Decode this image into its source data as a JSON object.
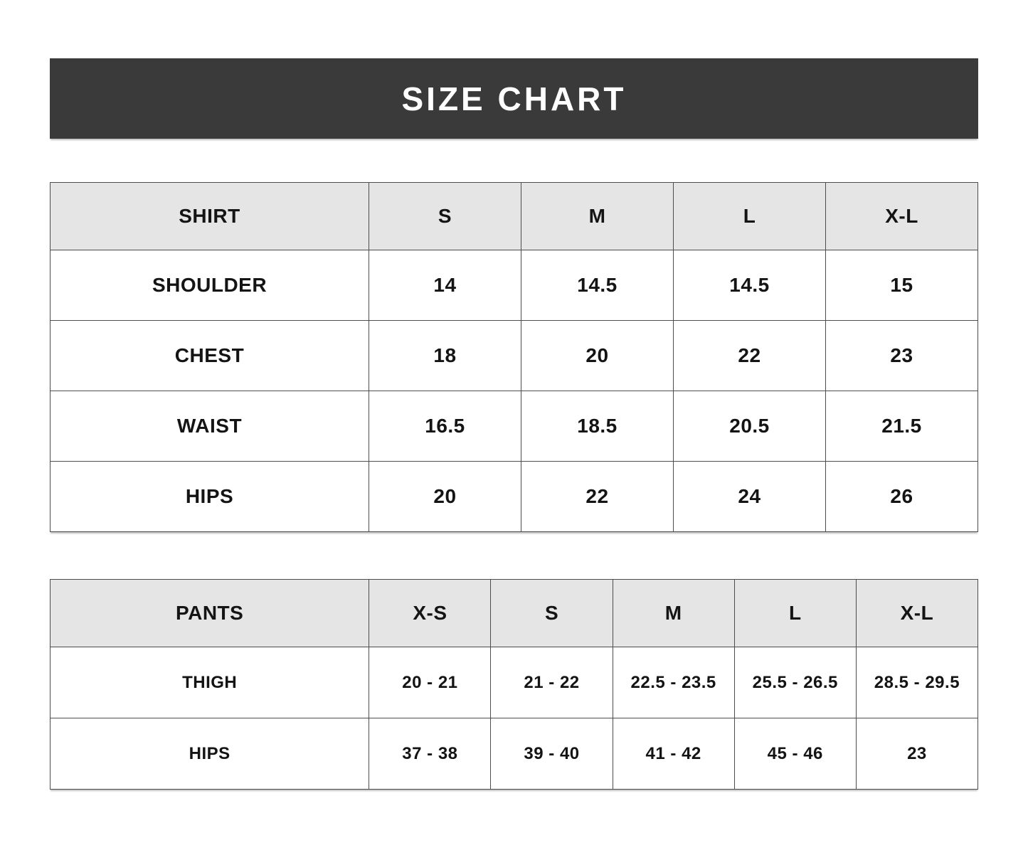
{
  "banner": {
    "title": "SIZE CHART"
  },
  "colors": {
    "banner_background": "#3a3a3a",
    "banner_text": "#ffffff",
    "header_row_background": "#e5e5e5",
    "table_border": "#4d4d4d",
    "text": "#141414",
    "page_background": "#ffffff"
  },
  "shirt_table": {
    "headers": [
      "SHIRT",
      "S",
      "M",
      "L",
      "X-L"
    ],
    "rows": [
      {
        "label": "SHOULDER",
        "values": [
          "14",
          "14.5",
          "14.5",
          "15"
        ]
      },
      {
        "label": "CHEST",
        "values": [
          "18",
          "20",
          "22",
          "23"
        ]
      },
      {
        "label": "WAIST",
        "values": [
          "16.5",
          "18.5",
          "20.5",
          "21.5"
        ]
      },
      {
        "label": "HIPS",
        "values": [
          "20",
          "22",
          "24",
          "26"
        ]
      }
    ]
  },
  "pants_table": {
    "headers": [
      "PANTS",
      "X-S",
      "S",
      "M",
      "L",
      "X-L"
    ],
    "rows": [
      {
        "label": "THIGH",
        "values": [
          "20 - 21",
          "21 - 22",
          "22.5 - 23.5",
          "25.5 - 26.5",
          "28.5 - 29.5"
        ]
      },
      {
        "label": "HIPS",
        "values": [
          "37 - 38",
          "39 - 40",
          "41 - 42",
          "45 - 46",
          "23"
        ]
      }
    ]
  }
}
